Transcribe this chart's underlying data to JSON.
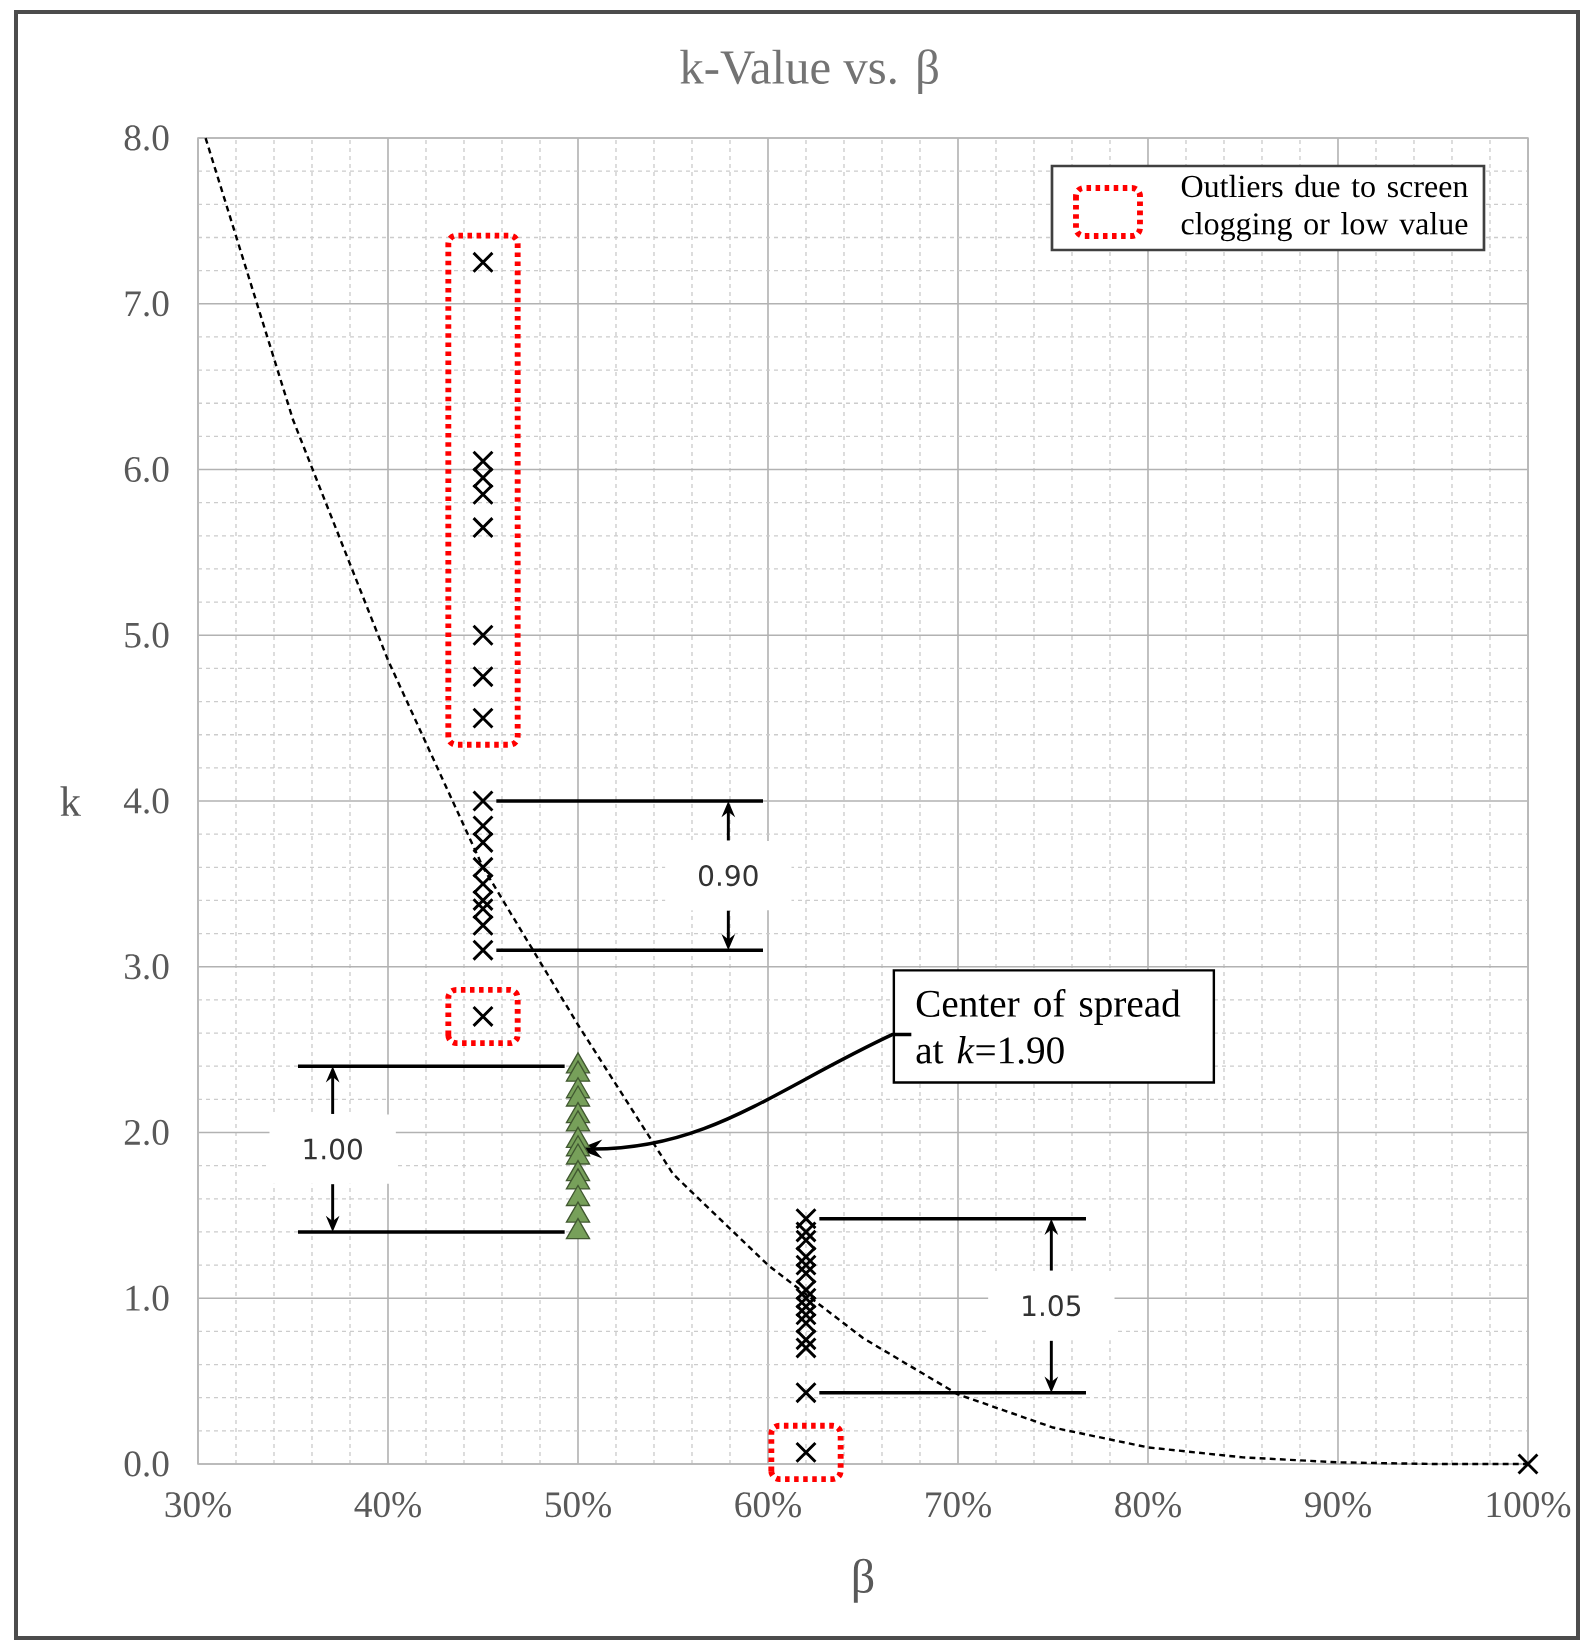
{
  "chart_data": {
    "type": "scatter",
    "title": "k-Value vs. β",
    "xlabel": "β",
    "ylabel": "k",
    "xlim": [
      30,
      100
    ],
    "ylim": [
      0,
      8
    ],
    "xticks": [
      {
        "value": 30,
        "label": "30%"
      },
      {
        "value": 40,
        "label": "40%"
      },
      {
        "value": 50,
        "label": "50%"
      },
      {
        "value": 60,
        "label": "60%"
      },
      {
        "value": 70,
        "label": "70%"
      },
      {
        "value": 80,
        "label": "80%"
      },
      {
        "value": 90,
        "label": "90%"
      },
      {
        "value": 100,
        "label": "100%"
      }
    ],
    "yticks": [
      {
        "value": 0,
        "label": "0.0"
      },
      {
        "value": 1,
        "label": "1.0"
      },
      {
        "value": 2,
        "label": "2.0"
      },
      {
        "value": 3,
        "label": "3.0"
      },
      {
        "value": 4,
        "label": "4.0"
      },
      {
        "value": 5,
        "label": "5.0"
      },
      {
        "value": 6,
        "label": "6.0"
      },
      {
        "value": 7,
        "label": "7.0"
      },
      {
        "value": 8,
        "label": "8.0"
      }
    ],
    "grid": true,
    "series": [
      {
        "color": "#000000",
        "marker": "cross",
        "x": [
          45,
          45,
          45,
          45,
          45,
          45,
          45,
          45,
          45,
          62,
          62,
          62,
          62,
          62,
          62,
          62,
          62,
          62,
          62,
          62,
          62,
          62,
          62,
          100
        ],
        "values": [
          4.0,
          3.85,
          3.75,
          3.6,
          3.5,
          3.4,
          3.35,
          3.25,
          3.1,
          1.48,
          1.4,
          1.35,
          1.25,
          1.2,
          1.15,
          1.05,
          1.0,
          0.95,
          0.9,
          0.85,
          0.75,
          0.7,
          0.43,
          0.0
        ]
      },
      {
        "color": "#77a05a",
        "marker": "triangle",
        "x": [
          50,
          50,
          50,
          50,
          50,
          50,
          50,
          50,
          50,
          50,
          50,
          50,
          50,
          50
        ],
        "values": [
          2.4,
          2.35,
          2.25,
          2.2,
          2.1,
          2.05,
          1.95,
          1.9,
          1.85,
          1.75,
          1.7,
          1.6,
          1.5,
          1.4
        ]
      },
      {
        "color": "#000000",
        "marker": "cross",
        "x": [
          45,
          45,
          45,
          45,
          45,
          45,
          45,
          45,
          null,
          45,
          null,
          62
        ],
        "values": [
          7.25,
          6.05,
          5.95,
          5.85,
          5.65,
          5.0,
          4.75,
          4.5,
          null,
          2.7,
          null,
          0.07
        ]
      },
      {
        "type": "line",
        "color": "#000000",
        "marker": "none",
        "line_style": "dashed",
        "x": [
          30.4,
          35,
          40,
          45,
          50,
          55,
          60,
          65,
          70,
          75,
          80,
          85,
          90,
          95,
          100
        ],
        "values": [
          8.0,
          6.3,
          4.85,
          3.6,
          2.65,
          1.75,
          1.2,
          0.76,
          0.42,
          0.22,
          0.1,
          0.04,
          0.01,
          0.0,
          0.0
        ]
      }
    ],
    "annotations": [
      "Outliers due to screen clogging or low value",
      "0.90",
      "1.00",
      {
        "text": "Center of spread at *k*=1.90",
        "x": 50,
        "y": 1.9
      },
      "1.05"
    ]
  }
}
